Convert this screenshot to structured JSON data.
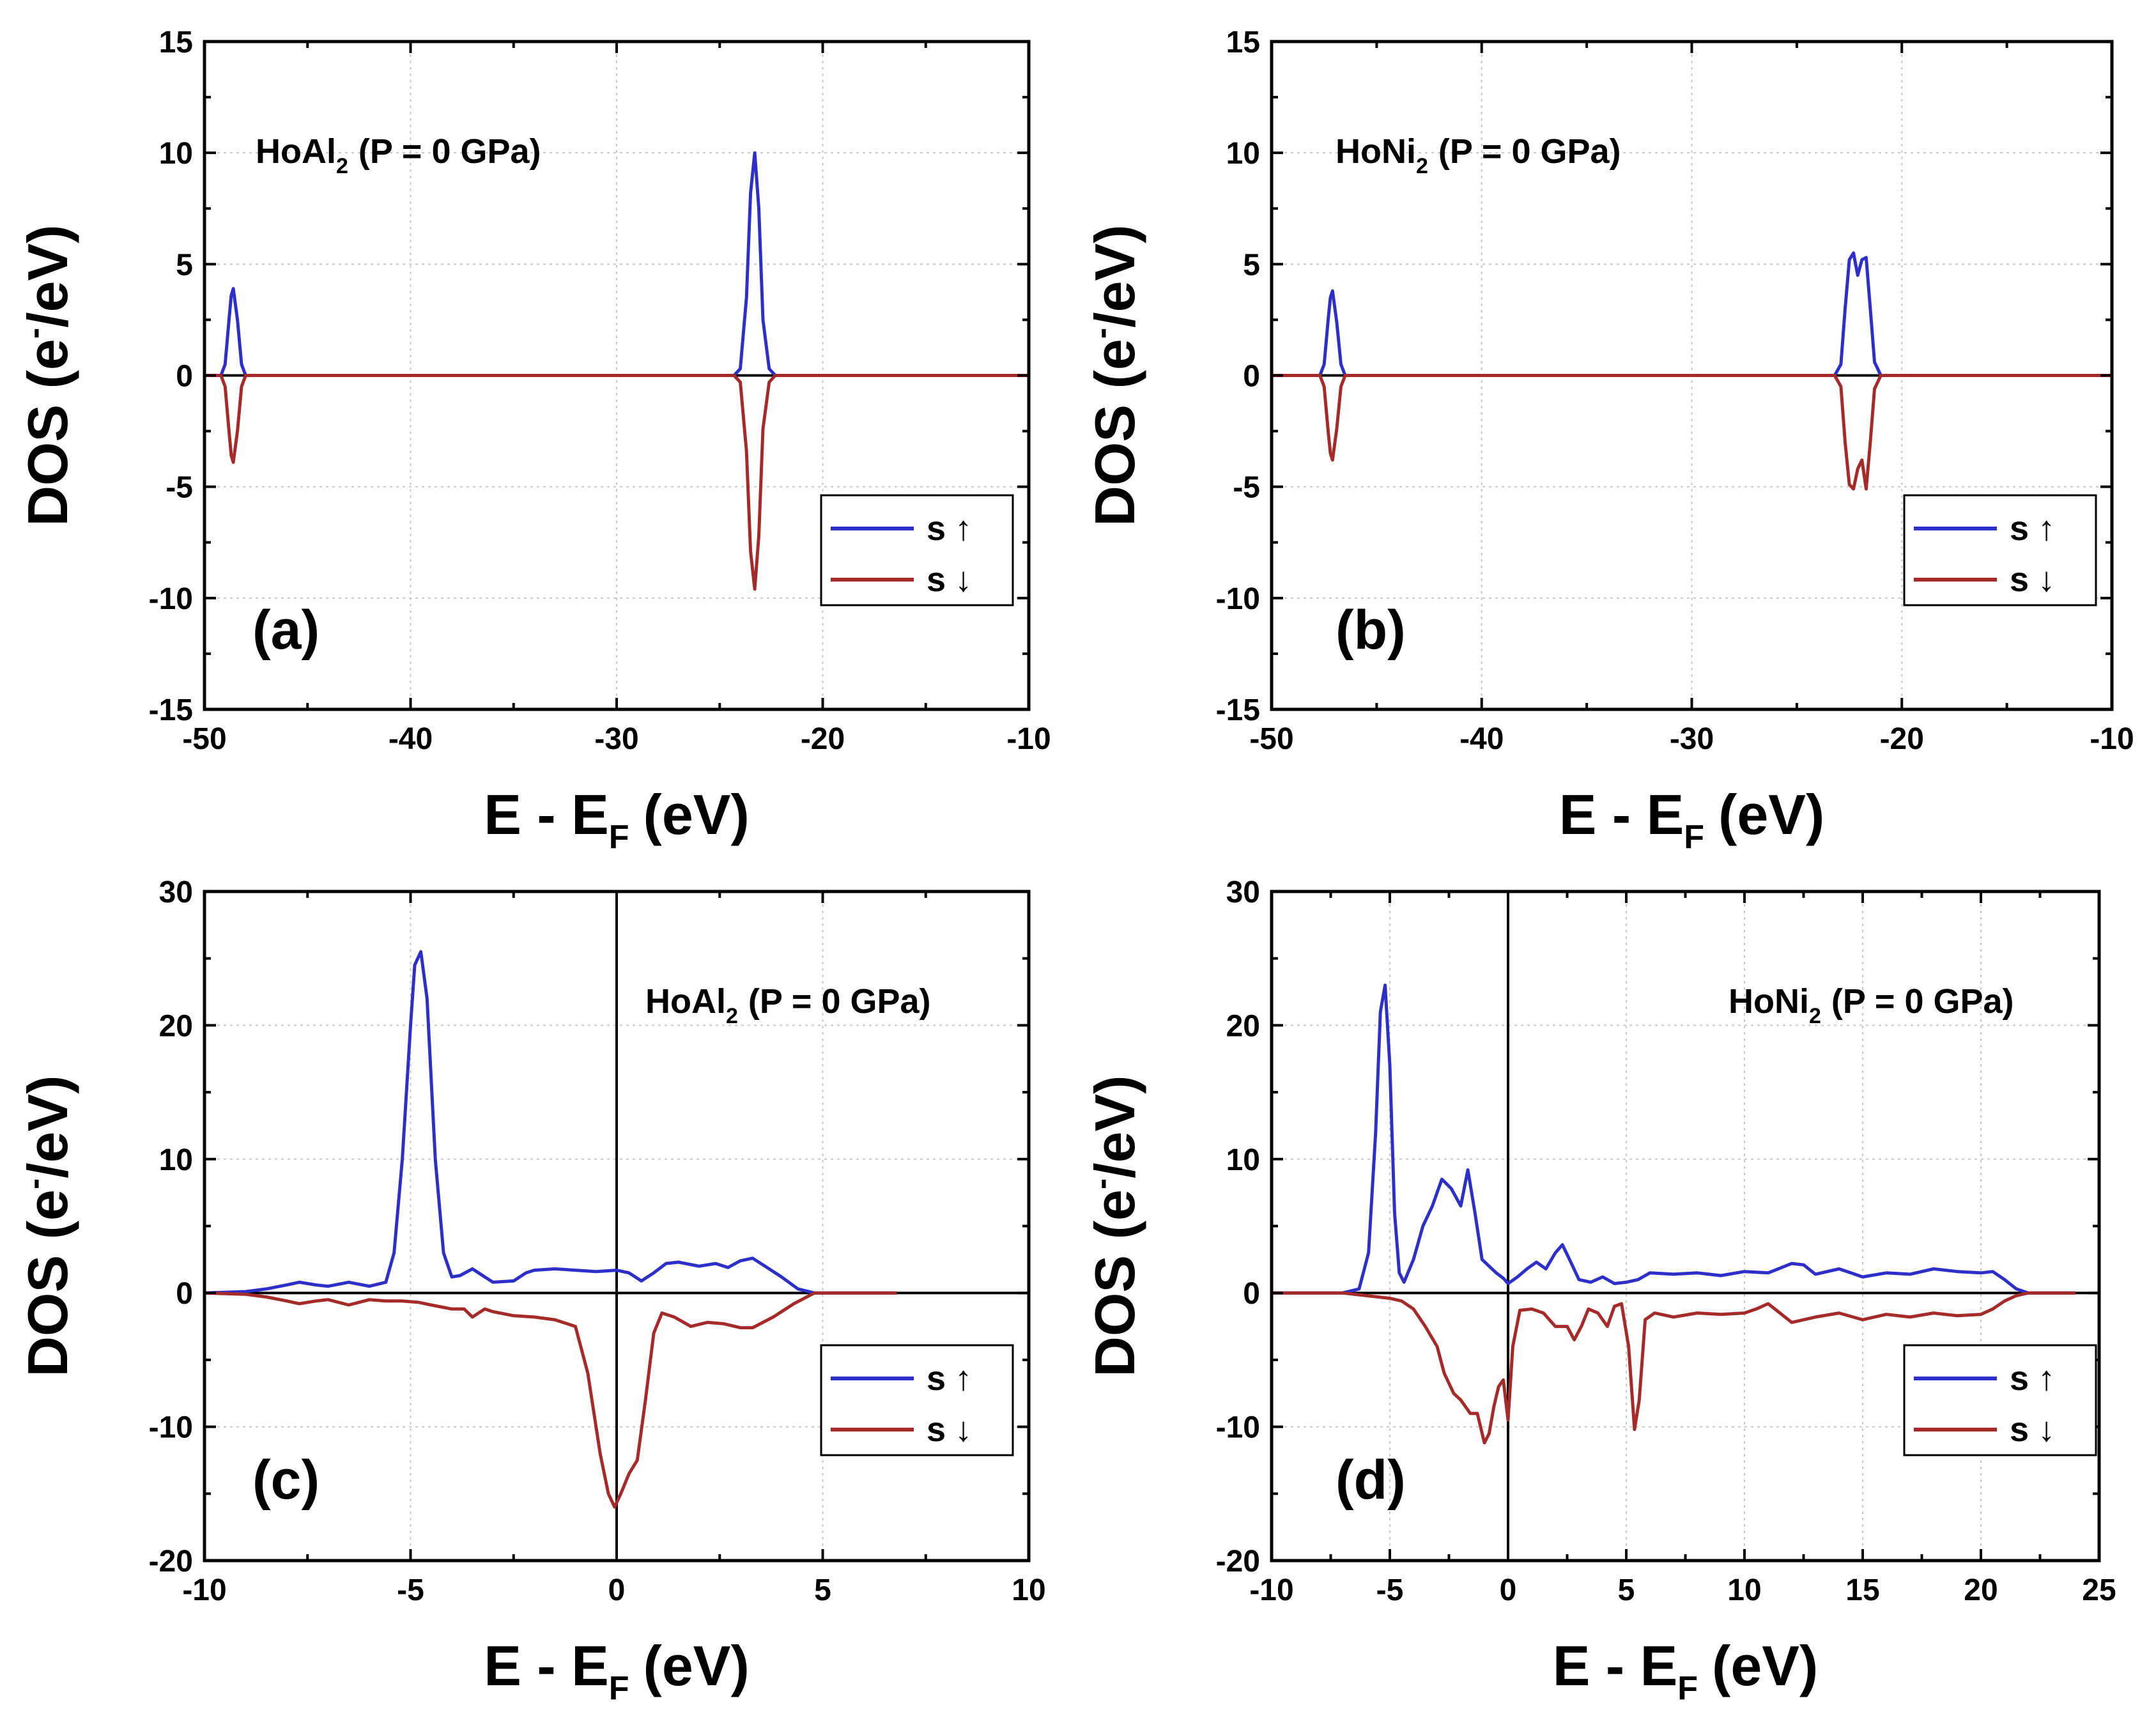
{
  "chart_data": [
    {
      "type": "line",
      "panel_label": "(a)",
      "compound": {
        "base": "HoAl",
        "subscript": "2",
        "condition": "(P = 0 GPa)"
      },
      "xlabel": {
        "main": "E - E",
        "subscript": "F",
        "unit": "(eV)"
      },
      "ylabel": {
        "main": "DOS (e",
        "superscript": "-",
        "tail": "/eV)"
      },
      "xlim": [
        -50,
        -10
      ],
      "ylim": [
        -15,
        15
      ],
      "xticks": [
        -50,
        -40,
        -30,
        -20,
        -10
      ],
      "yticks": [
        -15,
        -10,
        -5,
        0,
        5,
        10,
        15
      ],
      "vertical_zero_line": false,
      "legend": {
        "position": "lower-right",
        "entries": [
          {
            "label": "s",
            "arrow": "↑"
          },
          {
            "label": "s",
            "arrow": "↓"
          }
        ]
      },
      "series": [
        {
          "name": "s up",
          "color": "#2e2ec8",
          "x": [
            -50,
            -49.2,
            -49.0,
            -48.8,
            -48.7,
            -48.6,
            -48.4,
            -48.2,
            -48.0,
            -24.3,
            -24.0,
            -23.7,
            -23.5,
            -23.3,
            -23.1,
            -22.9,
            -22.6,
            -22.3,
            -10
          ],
          "y": [
            0,
            0,
            0.5,
            2.6,
            3.6,
            3.9,
            2.5,
            0.5,
            0,
            0,
            0.3,
            3.5,
            8.2,
            10.0,
            7.5,
            2.5,
            0.3,
            0,
            0
          ]
        },
        {
          "name": "s down",
          "color": "#a52a2a",
          "x": [
            -50,
            -49.2,
            -49.0,
            -48.8,
            -48.7,
            -48.6,
            -48.4,
            -48.2,
            -48.0,
            -24.3,
            -24.0,
            -23.7,
            -23.5,
            -23.3,
            -23.1,
            -22.9,
            -22.6,
            -22.3,
            -10
          ],
          "y": [
            0,
            0,
            -0.5,
            -2.6,
            -3.6,
            -3.9,
            -2.5,
            -0.5,
            0,
            0,
            -0.3,
            -3.4,
            -7.9,
            -9.6,
            -7.2,
            -2.4,
            -0.3,
            0,
            0
          ]
        }
      ]
    },
    {
      "type": "line",
      "panel_label": "(b)",
      "compound": {
        "base": "HoNi",
        "subscript": "2",
        "condition": "(P = 0 GPa)"
      },
      "xlabel": {
        "main": "E - E",
        "subscript": "F",
        "unit": "(eV)"
      },
      "ylabel": {
        "main": "DOS (e",
        "superscript": "-",
        "tail": "/eV)"
      },
      "xlim": [
        -50,
        -10
      ],
      "ylim": [
        -15,
        15
      ],
      "xticks": [
        -50,
        -40,
        -30,
        -20,
        -10
      ],
      "yticks": [
        -15,
        -10,
        -5,
        0,
        5,
        10,
        15
      ],
      "vertical_zero_line": false,
      "legend": {
        "position": "lower-right",
        "entries": [
          {
            "label": "s",
            "arrow": "↑"
          },
          {
            "label": "s",
            "arrow": "↓"
          }
        ]
      },
      "series": [
        {
          "name": "s up",
          "color": "#2e2ec8",
          "x": [
            -50,
            -47.7,
            -47.5,
            -47.3,
            -47.2,
            -47.1,
            -46.9,
            -46.7,
            -46.5,
            -23.2,
            -22.9,
            -22.7,
            -22.5,
            -22.3,
            -22.1,
            -21.9,
            -21.7,
            -21.5,
            -21.3,
            -21.0,
            -10
          ],
          "y": [
            0,
            0,
            0.5,
            2.6,
            3.5,
            3.8,
            2.4,
            0.5,
            0,
            0,
            0.5,
            3.0,
            5.2,
            5.5,
            4.5,
            5.2,
            5.3,
            3.0,
            0.6,
            0,
            0
          ]
        },
        {
          "name": "s down",
          "color": "#a52a2a",
          "x": [
            -50,
            -47.7,
            -47.5,
            -47.3,
            -47.2,
            -47.1,
            -46.9,
            -46.7,
            -46.5,
            -23.2,
            -22.9,
            -22.7,
            -22.5,
            -22.3,
            -22.1,
            -21.9,
            -21.7,
            -21.5,
            -21.3,
            -21.0,
            -10
          ],
          "y": [
            0,
            0,
            -0.5,
            -2.6,
            -3.5,
            -3.8,
            -2.4,
            -0.5,
            0,
            0,
            -0.5,
            -3.0,
            -4.9,
            -5.1,
            -4.2,
            -3.8,
            -5.1,
            -3.0,
            -0.6,
            0,
            0
          ]
        }
      ]
    },
    {
      "type": "line",
      "panel_label": "(c)",
      "compound": {
        "base": "HoAl",
        "subscript": "2",
        "condition": "(P = 0 GPa)"
      },
      "xlabel": {
        "main": "E - E",
        "subscript": "F",
        "unit": "(eV)"
      },
      "ylabel": {
        "main": "DOS (e",
        "superscript": "-",
        "tail": "/eV)"
      },
      "xlim": [
        -10,
        10
      ],
      "ylim": [
        -20,
        30
      ],
      "xticks": [
        -10,
        -5,
        0,
        5,
        10
      ],
      "yticks": [
        -20,
        -10,
        0,
        10,
        20,
        30
      ],
      "vertical_zero_line": true,
      "legend": {
        "position": "lower-right",
        "entries": [
          {
            "label": "s",
            "arrow": "↑"
          },
          {
            "label": "s",
            "arrow": "↓"
          }
        ]
      },
      "series": [
        {
          "name": "s up",
          "color": "#2e2ec8",
          "x": [
            -10,
            -9,
            -8.5,
            -8,
            -7.7,
            -7.3,
            -7,
            -6.5,
            -6,
            -5.6,
            -5.4,
            -5.2,
            -5.0,
            -4.9,
            -4.75,
            -4.6,
            -4.4,
            -4.2,
            -4,
            -3.8,
            -3.5,
            -3.2,
            -3,
            -2.5,
            -2.2,
            -2,
            -1.5,
            -1,
            -0.5,
            0,
            0.3,
            0.6,
            0.9,
            1.2,
            1.5,
            2,
            2.4,
            2.7,
            3,
            3.3,
            3.6,
            4,
            4.4,
            4.8,
            5.5,
            6.8
          ],
          "y": [
            0,
            0.1,
            0.3,
            0.6,
            0.8,
            0.6,
            0.5,
            0.8,
            0.5,
            0.8,
            3,
            10,
            20,
            24.5,
            25.5,
            22,
            10,
            3,
            1.2,
            1.3,
            1.8,
            1.2,
            0.8,
            0.9,
            1.5,
            1.7,
            1.8,
            1.7,
            1.6,
            1.7,
            1.5,
            0.9,
            1.5,
            2.2,
            2.3,
            2.0,
            2.2,
            1.9,
            2.4,
            2.6,
            2.0,
            1.2,
            0.3,
            0,
            0,
            0
          ]
        },
        {
          "name": "s down",
          "color": "#a52a2a",
          "x": [
            -10,
            -9,
            -8.5,
            -8,
            -7.7,
            -7.3,
            -7,
            -6.5,
            -6,
            -5.6,
            -5.2,
            -4.8,
            -4.5,
            -4,
            -3.7,
            -3.5,
            -3.2,
            -3,
            -2.5,
            -2,
            -1.5,
            -1,
            -0.7,
            -0.4,
            -0.2,
            -0.05,
            0.1,
            0.3,
            0.5,
            0.7,
            0.9,
            1.1,
            1.4,
            1.8,
            2.2,
            2.6,
            3,
            3.3,
            3.8,
            4.3,
            4.8,
            5.5,
            6.8
          ],
          "y": [
            0,
            -0.1,
            -0.3,
            -0.6,
            -0.8,
            -0.6,
            -0.5,
            -0.9,
            -0.5,
            -0.6,
            -0.6,
            -0.7,
            -0.9,
            -1.2,
            -1.2,
            -1.8,
            -1.2,
            -1.4,
            -1.7,
            -1.8,
            -2,
            -2.5,
            -6,
            -12,
            -15,
            -16,
            -15,
            -13.5,
            -12.5,
            -8,
            -3,
            -1.5,
            -1.8,
            -2.5,
            -2.2,
            -2.3,
            -2.6,
            -2.6,
            -1.8,
            -0.8,
            0,
            0,
            0
          ]
        }
      ]
    },
    {
      "type": "line",
      "panel_label": "(d)",
      "compound": {
        "base": "HoNi",
        "subscript": "2",
        "condition": "(P = 0 GPa)"
      },
      "xlabel": {
        "main": "E - E",
        "subscript": "F",
        "unit": "(eV)"
      },
      "ylabel": {
        "main": "DOS (e",
        "superscript": "-",
        "tail": "/eV)"
      },
      "xlim": [
        -10,
        25
      ],
      "ylim": [
        -20,
        30
      ],
      "xticks": [
        -10,
        -5,
        0,
        5,
        10,
        15,
        20,
        25
      ],
      "yticks": [
        -20,
        -10,
        0,
        10,
        20,
        30
      ],
      "vertical_zero_line": true,
      "legend": {
        "position": "lower-right",
        "entries": [
          {
            "label": "s",
            "arrow": "↑"
          },
          {
            "label": "s",
            "arrow": "↓"
          }
        ]
      },
      "series": [
        {
          "name": "s up",
          "color": "#2e2ec8",
          "x": [
            -10,
            -7,
            -6.3,
            -5.9,
            -5.6,
            -5.4,
            -5.2,
            -5.0,
            -4.8,
            -4.6,
            -4.4,
            -4,
            -3.6,
            -3.2,
            -2.8,
            -2.4,
            -2.0,
            -1.7,
            -1.4,
            -1.1,
            -0.8,
            -0.5,
            -0.2,
            0,
            0.4,
            0.8,
            1.2,
            1.6,
            2.0,
            2.3,
            2.6,
            3.0,
            3.5,
            4,
            4.5,
            5,
            5.5,
            6,
            7,
            8,
            9,
            10,
            11,
            12,
            12.5,
            13,
            14,
            14.5,
            15,
            16,
            17,
            18,
            19,
            20,
            20.5,
            21,
            21.5,
            22,
            24
          ],
          "y": [
            0,
            0,
            0.3,
            3,
            12,
            21,
            23,
            17,
            6,
            1.5,
            0.8,
            2.5,
            5,
            6.5,
            8.5,
            7.8,
            6.5,
            9.2,
            6,
            2.5,
            2,
            1.5,
            1.1,
            0.7,
            1.2,
            1.8,
            2.3,
            1.8,
            3.0,
            3.6,
            2.5,
            1.0,
            0.8,
            1.2,
            0.7,
            0.8,
            1.0,
            1.5,
            1.4,
            1.5,
            1.3,
            1.6,
            1.5,
            2.2,
            2.1,
            1.4,
            1.8,
            1.5,
            1.2,
            1.5,
            1.4,
            1.8,
            1.6,
            1.5,
            1.6,
            1.0,
            0.3,
            0,
            0
          ]
        },
        {
          "name": "s down",
          "color": "#a52a2a",
          "x": [
            -10,
            -7,
            -6,
            -5,
            -4.5,
            -4,
            -3.5,
            -3,
            -2.7,
            -2.3,
            -2,
            -1.6,
            -1.3,
            -1,
            -0.8,
            -0.6,
            -0.4,
            -0.2,
            0,
            0.2,
            0.5,
            1,
            1.5,
            2,
            2.5,
            2.8,
            3.1,
            3.4,
            3.8,
            4.2,
            4.5,
            4.8,
            5.1,
            5.35,
            5.55,
            5.8,
            6.2,
            7,
            8,
            9,
            10,
            10.5,
            11,
            11.5,
            12,
            13,
            14,
            15,
            16,
            17,
            18,
            19,
            20,
            20.5,
            21,
            21.5,
            22,
            24
          ],
          "y": [
            0,
            0,
            -0.2,
            -0.4,
            -0.6,
            -1.2,
            -2.5,
            -4,
            -6,
            -7.5,
            -8,
            -9,
            -9,
            -11.2,
            -10.5,
            -8.5,
            -7,
            -6.5,
            -9.5,
            -4,
            -1.3,
            -1.2,
            -1.5,
            -2.5,
            -2.5,
            -3.5,
            -2.5,
            -1.2,
            -1.5,
            -2.5,
            -1,
            -0.8,
            -4,
            -10.2,
            -8,
            -2,
            -1.5,
            -1.8,
            -1.5,
            -1.6,
            -1.5,
            -1.2,
            -0.8,
            -1.5,
            -2.2,
            -1.8,
            -1.5,
            -2,
            -1.6,
            -1.8,
            -1.5,
            -1.7,
            -1.6,
            -1.2,
            -0.6,
            -0.2,
            0,
            0
          ]
        }
      ]
    }
  ]
}
